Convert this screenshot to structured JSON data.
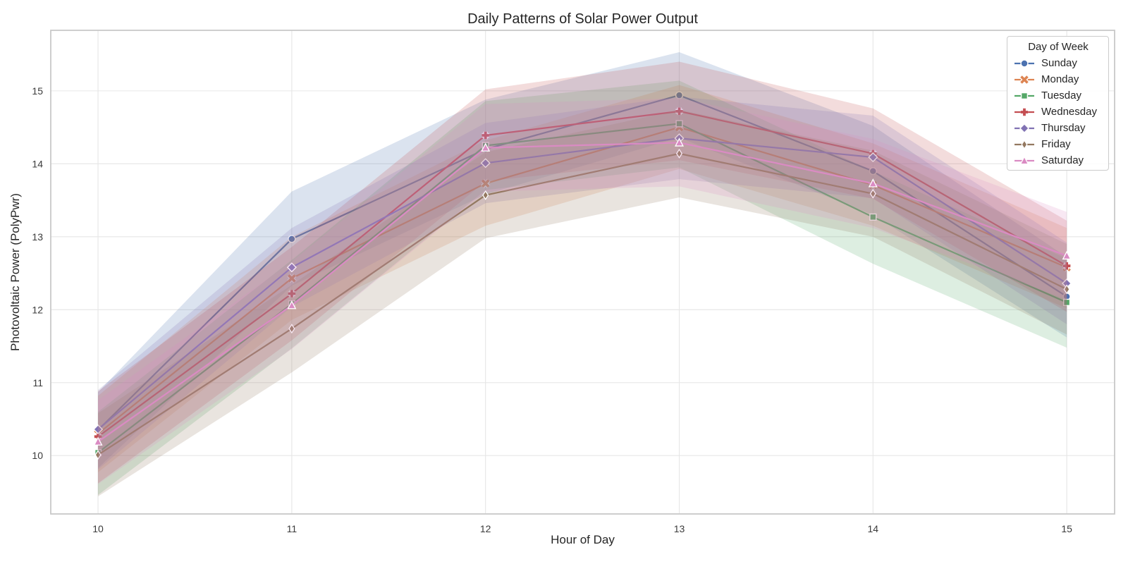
{
  "chart_data": {
    "type": "line",
    "title": "Daily Patterns of Solar Power Output",
    "xlabel": "Hour of Day",
    "ylabel": "Photovoltaic Power (PolyPwr)",
    "legend_title": "Day of Week",
    "legend_position": "upper right",
    "grid": true,
    "x": [
      10,
      11,
      12,
      13,
      14,
      15
    ],
    "xticks": [
      "10",
      "11",
      "12",
      "13",
      "14",
      "15"
    ],
    "yticks": [
      "10",
      "11",
      "12",
      "13",
      "14",
      "15"
    ],
    "xlim": [
      9.756,
      15.247
    ],
    "ylim": [
      9.2,
      15.83
    ],
    "band_alpha": 0.2,
    "series": [
      {
        "name": "Sunday",
        "color": "#4C72B0",
        "marker": "circle",
        "values": [
          10.35,
          12.97,
          14.2,
          14.94,
          13.9,
          12.18
        ],
        "band_high": [
          10.87,
          13.62,
          14.88,
          15.53,
          14.52,
          12.72
        ],
        "band_low": [
          9.83,
          12.33,
          13.58,
          14.36,
          13.3,
          11.62
        ]
      },
      {
        "name": "Monday",
        "color": "#DD8452",
        "marker": "x",
        "values": [
          10.3,
          12.43,
          13.73,
          14.5,
          13.71,
          12.58
        ],
        "band_high": [
          10.82,
          13.0,
          14.32,
          15.08,
          14.28,
          13.12
        ],
        "band_low": [
          9.77,
          11.86,
          13.15,
          13.93,
          13.15,
          12.02
        ]
      },
      {
        "name": "Tuesday",
        "color": "#55A868",
        "marker": "square",
        "values": [
          10.04,
          12.08,
          14.25,
          14.55,
          13.27,
          12.1
        ],
        "band_high": [
          10.6,
          12.68,
          14.86,
          15.14,
          13.9,
          12.7
        ],
        "band_low": [
          9.46,
          11.47,
          13.64,
          13.95,
          12.63,
          11.48
        ]
      },
      {
        "name": "Wednesday",
        "color": "#C44E52",
        "marker": "plus",
        "values": [
          10.26,
          12.22,
          14.39,
          14.72,
          14.14,
          12.6
        ],
        "band_high": [
          10.88,
          12.86,
          15.02,
          15.4,
          14.76,
          13.22
        ],
        "band_low": [
          9.62,
          11.58,
          13.76,
          14.05,
          13.52,
          11.97
        ]
      },
      {
        "name": "Thursday",
        "color": "#8172B3",
        "marker": "diamond",
        "values": [
          10.36,
          12.58,
          14.01,
          14.35,
          14.09,
          12.36
        ],
        "band_high": [
          10.9,
          13.12,
          14.56,
          14.92,
          14.66,
          12.92
        ],
        "band_low": [
          9.81,
          12.04,
          13.46,
          13.79,
          13.53,
          11.8
        ]
      },
      {
        "name": "Friday",
        "color": "#937860",
        "marker": "thin-diamond",
        "values": [
          10.01,
          11.74,
          13.57,
          14.14,
          13.59,
          12.28
        ],
        "band_high": [
          10.58,
          12.34,
          14.16,
          14.74,
          14.18,
          12.9
        ],
        "band_low": [
          9.44,
          11.14,
          12.98,
          13.54,
          13.0,
          11.66
        ]
      },
      {
        "name": "Saturday",
        "color": "#DA8BC3",
        "marker": "triangle",
        "values": [
          10.19,
          12.06,
          14.22,
          14.29,
          13.73,
          12.74
        ],
        "band_high": [
          10.76,
          12.66,
          14.82,
          14.9,
          14.34,
          13.34
        ],
        "band_low": [
          9.61,
          11.46,
          13.62,
          13.69,
          13.12,
          12.14
        ]
      }
    ]
  },
  "colors": {
    "background": "#ffffff",
    "grid": "#e6e6e6",
    "spine": "#c9c9c9",
    "text": "#262626",
    "marker_edge": "#ffffff"
  }
}
